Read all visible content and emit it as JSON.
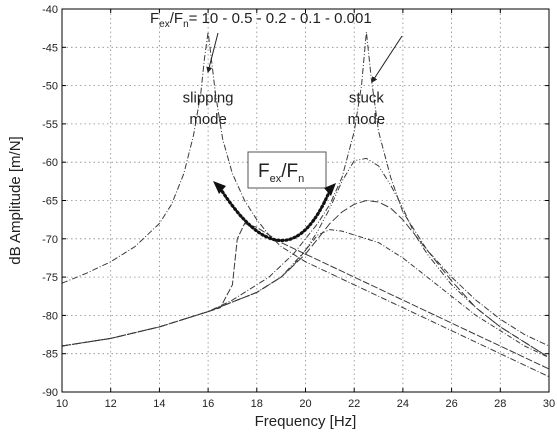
{
  "chart_data": {
    "type": "line",
    "xlabel": "Frequency [Hz]",
    "ylabel": "dB Amplitude [m/N]",
    "xlim": [
      10,
      30
    ],
    "ylim": [
      -90,
      -40
    ],
    "xticks": [
      10,
      12,
      14,
      16,
      18,
      20,
      22,
      24,
      26,
      28,
      30
    ],
    "yticks": [
      -90,
      -85,
      -80,
      -75,
      -70,
      -65,
      -60,
      -55,
      -50,
      -45,
      -40
    ],
    "grid": true,
    "legend": "none",
    "series": [
      {
        "values_x": [
          10,
          11,
          12,
          13,
          14,
          14.5,
          15,
          15.4,
          15.7,
          15.85,
          16,
          16.15,
          16.3,
          16.6,
          17,
          17.5,
          18,
          18.5,
          19,
          20,
          21,
          22,
          23,
          24,
          25,
          26,
          27,
          28,
          29,
          30
        ],
        "values_y": [
          -75.8,
          -74.5,
          -73.0,
          -71.0,
          -68.0,
          -65.5,
          -61.5,
          -56.5,
          -51.0,
          -46.5,
          -43.0,
          -47.0,
          -51.0,
          -57.0,
          -61.5,
          -65.0,
          -67.5,
          -69.5,
          -71.0,
          -73.0,
          -74.5,
          -76.0,
          -77.5,
          -79.0,
          -80.5,
          -82.0,
          -83.5,
          -85.0,
          -86.5,
          -88.0
        ]
      },
      {
        "values_x": [
          10,
          12,
          14,
          16,
          17,
          17.5,
          18,
          18.5,
          19,
          19.5,
          20,
          20.5,
          21,
          21.5,
          22,
          22.3,
          22.5,
          22.7,
          23,
          23.5,
          24,
          25,
          26,
          27,
          28,
          29,
          30
        ],
        "values_y": [
          -84.0,
          -83.0,
          -81.5,
          -79.5,
          -78.0,
          -77.0,
          -76.0,
          -75.0,
          -73.5,
          -72.0,
          -70.0,
          -68.0,
          -65.5,
          -62.0,
          -56.0,
          -50.0,
          -43.0,
          -49.0,
          -56.0,
          -62.0,
          -66.5,
          -71.5,
          -75.0,
          -78.0,
          -80.5,
          -82.5,
          -84.0
        ]
      },
      {
        "values_x": [
          16,
          16.5,
          17,
          17.2,
          17.5,
          18,
          18.5,
          19,
          20,
          21,
          22,
          23,
          24,
          25,
          26,
          27,
          28,
          29,
          30
        ],
        "values_y": [
          -79.5,
          -79.0,
          -76.0,
          -70.0,
          -68.0,
          -68.5,
          -69.5,
          -70.5,
          -72.0,
          -73.5,
          -75.0,
          -76.5,
          -78.0,
          -79.5,
          -81.0,
          -82.5,
          -84.0,
          -85.5,
          -87.0
        ]
      },
      {
        "values_x": [
          10,
          12,
          14,
          16,
          18,
          19,
          19.5,
          20,
          20.5,
          21,
          21.5,
          22,
          22.5,
          23,
          23.5,
          24,
          25,
          26,
          27,
          28,
          29,
          30
        ],
        "values_y": [
          -84.0,
          -83.0,
          -81.5,
          -79.5,
          -77.0,
          -75.0,
          -73.5,
          -71.5,
          -69.5,
          -68.8,
          -69.0,
          -69.5,
          -70.0,
          -70.5,
          -71.5,
          -72.5,
          -75.0,
          -77.5,
          -80.0,
          -82.0,
          -84.0,
          -85.5
        ]
      },
      {
        "values_x": [
          10,
          12,
          14,
          16,
          18,
          19,
          20,
          20.5,
          21,
          21.5,
          22,
          22.5,
          23,
          23.5,
          24,
          24.5,
          25,
          26,
          27,
          28,
          29,
          30
        ],
        "values_y": [
          -84.0,
          -83.0,
          -81.5,
          -79.5,
          -77.0,
          -75.0,
          -72.0,
          -70.0,
          -68.0,
          -66.5,
          -65.5,
          -65.0,
          -65.2,
          -66.0,
          -67.5,
          -69.5,
          -71.5,
          -75.5,
          -79.0,
          -81.5,
          -83.5,
          -85.5
        ]
      },
      {
        "values_x": [
          10,
          12,
          14,
          16,
          18,
          19,
          20,
          20.5,
          21,
          21.5,
          22,
          22.5,
          23,
          23.5,
          24,
          24.5,
          25,
          26,
          27,
          28,
          29,
          30
        ],
        "values_y": [
          -84.0,
          -83.0,
          -81.5,
          -79.5,
          -77.0,
          -75.0,
          -71.5,
          -69.0,
          -66.0,
          -62.5,
          -59.8,
          -59.5,
          -60.5,
          -63.0,
          -66.0,
          -69.5,
          -72.0,
          -76.0,
          -79.0,
          -81.5,
          -83.5,
          -85.5
        ]
      }
    ],
    "annotations": [
      {
        "text_main": "F",
        "sub1": "ex",
        "slash": "/F",
        "sub2": "n",
        "text_rest": "= 10 - 0.5 - 0.2 - 0.1 - 0.001",
        "x": 15.8,
        "y": -41.8
      },
      {
        "text": "slipping",
        "x": 16.0,
        "y": -52.2
      },
      {
        "text": "mode",
        "x": 16.0,
        "y": -55.0
      },
      {
        "text": "stuck",
        "x": 22.5,
        "y": -52.2
      },
      {
        "text": "mode",
        "x": 22.5,
        "y": -55.0
      },
      {
        "text_main": "F",
        "sub1": "ex",
        "slash": "/F",
        "sub2": "n",
        "x": 19.1,
        "y": -63.3
      }
    ]
  }
}
